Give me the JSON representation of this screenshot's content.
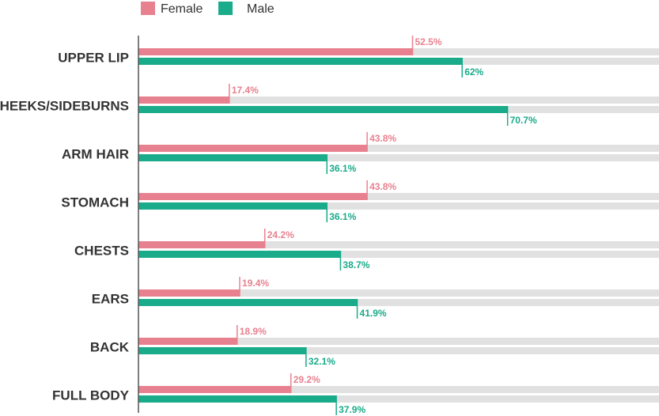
{
  "chart_data": {
    "type": "bar",
    "orientation": "horizontal",
    "categories": [
      "UPPER LIP",
      "CHEEKS/SIDEBURNS",
      "ARM HAIR",
      "STOMACH",
      "CHESTS",
      "EARS",
      "BACK",
      "FULL BODY"
    ],
    "series": [
      {
        "name": "Female",
        "color": "#e8818f",
        "values": [
          52.5,
          17.4,
          43.8,
          43.8,
          24.2,
          19.4,
          18.9,
          29.2
        ],
        "labels": [
          "52.5%",
          "17.4%",
          "43.8%",
          "43.8%",
          "24.2%",
          "19.4%",
          "18.9%",
          "29.2%"
        ]
      },
      {
        "name": "Male",
        "color": "#1aab8a",
        "values": [
          62,
          70.7,
          36.1,
          36.1,
          38.7,
          41.9,
          32.1,
          37.9
        ],
        "labels": [
          "62%",
          "70.7%",
          "36.1%",
          "36.1%",
          "38.7%",
          "41.9%",
          "32.1%",
          "37.9%"
        ]
      }
    ],
    "track_color": "#e1e1e1",
    "legend_placement": "top-left",
    "grid": false
  }
}
